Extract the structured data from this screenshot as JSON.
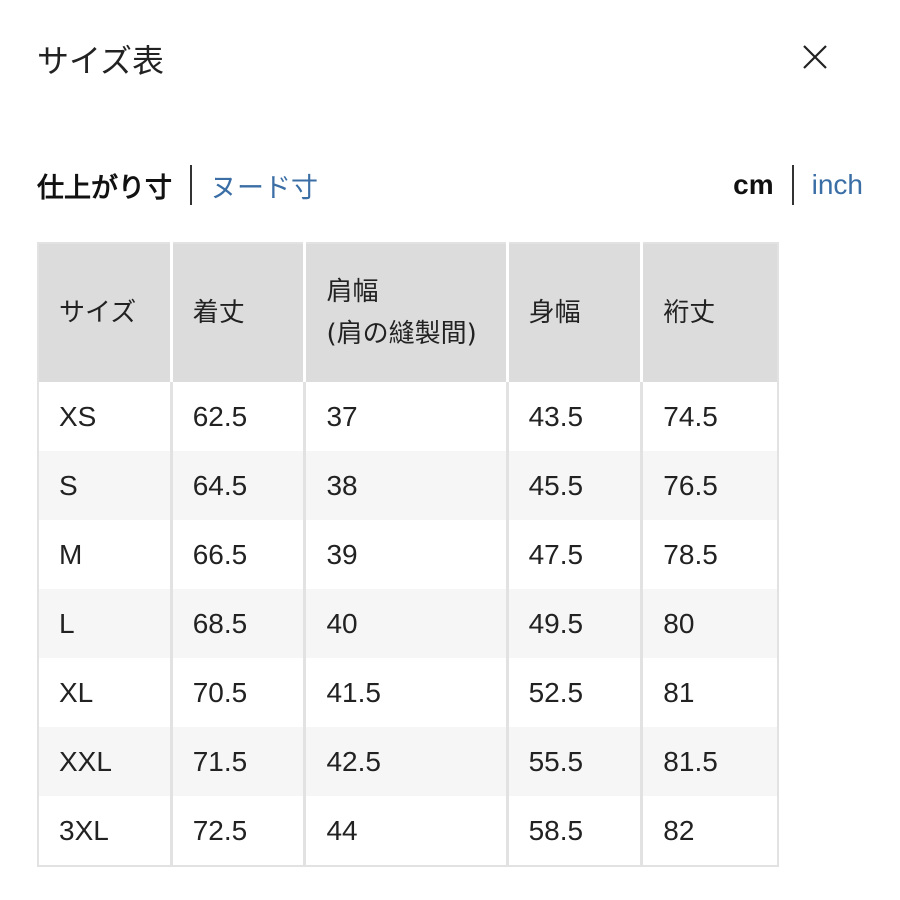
{
  "header": {
    "title": "サイズ表",
    "close_icon": "close-icon"
  },
  "tabs": {
    "active": "仕上がり寸",
    "other": "ヌード寸"
  },
  "units": {
    "active": "cm",
    "other": "inch"
  },
  "table": {
    "headers": [
      "サイズ",
      "着丈",
      "肩幅\n(肩の縫製間)",
      "身幅",
      "裄丈"
    ],
    "rows": [
      [
        "XS",
        "62.5",
        "37",
        "43.5",
        "74.5"
      ],
      [
        "S",
        "64.5",
        "38",
        "45.5",
        "76.5"
      ],
      [
        "M",
        "66.5",
        "39",
        "47.5",
        "78.5"
      ],
      [
        "L",
        "68.5",
        "40",
        "49.5",
        "80"
      ],
      [
        "XL",
        "70.5",
        "41.5",
        "52.5",
        "81"
      ],
      [
        "XXL",
        "71.5",
        "42.5",
        "55.5",
        "81.5"
      ],
      [
        "3XL",
        "72.5",
        "44",
        "58.5",
        "82"
      ]
    ]
  }
}
